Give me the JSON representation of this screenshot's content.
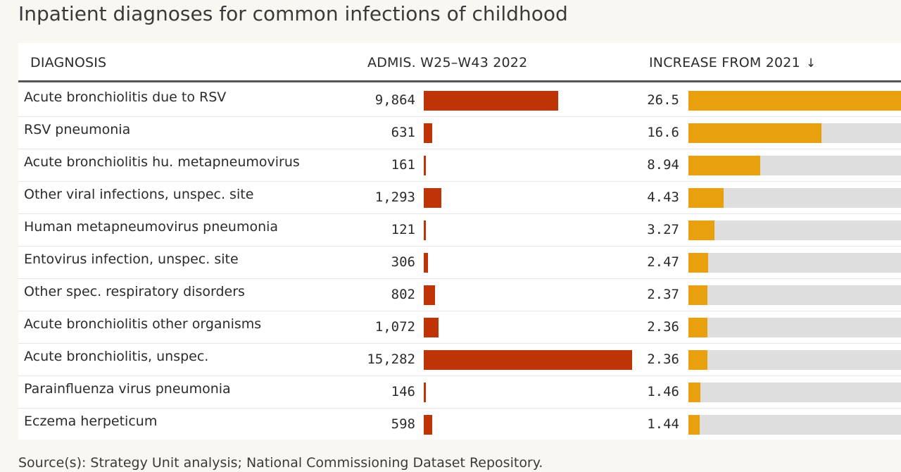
{
  "title": "Inpatient diagnoses for common infections of childhood",
  "source": "Source(s): Strategy Unit analysis; National Commissioning Dataset Repository.",
  "columns": {
    "diagnosis": "DIAGNOSIS",
    "admissions": "ADMIS. W25–W43 2022",
    "increase": "INCREASE FROM 2021",
    "sort_icon": "↓"
  },
  "colors": {
    "admissions_bar": "#bf3407",
    "increase_bar": "#e8a00e",
    "track": "#dedede"
  },
  "chart_data": {
    "type": "table",
    "admissions_max": 15282,
    "increase_max": 26.5,
    "sorted_by": "increase",
    "sort_order": "descending",
    "rows": [
      {
        "diagnosis": "Acute bronchiolitis due to RSV",
        "admissions": 9864,
        "admissions_label": "9,864",
        "increase": 26.5,
        "increase_label": "26.5"
      },
      {
        "diagnosis": "RSV pneumonia",
        "admissions": 631,
        "admissions_label": "631",
        "increase": 16.6,
        "increase_label": "16.6"
      },
      {
        "diagnosis": "Acute bronchiolitis hu. metapneumovirus",
        "admissions": 161,
        "admissions_label": "161",
        "increase": 8.94,
        "increase_label": "8.94"
      },
      {
        "diagnosis": "Other viral infections, unspec. site",
        "admissions": 1293,
        "admissions_label": "1,293",
        "increase": 4.43,
        "increase_label": "4.43"
      },
      {
        "diagnosis": "Human metapneumovirus pneumonia",
        "admissions": 121,
        "admissions_label": "121",
        "increase": 3.27,
        "increase_label": "3.27"
      },
      {
        "diagnosis": "Entovirus infection, unspec. site",
        "admissions": 306,
        "admissions_label": "306",
        "increase": 2.47,
        "increase_label": "2.47"
      },
      {
        "diagnosis": "Other spec. respiratory disorders",
        "admissions": 802,
        "admissions_label": "802",
        "increase": 2.37,
        "increase_label": "2.37"
      },
      {
        "diagnosis": "Acute bronchiolitis other organisms",
        "admissions": 1072,
        "admissions_label": "1,072",
        "increase": 2.36,
        "increase_label": "2.36"
      },
      {
        "diagnosis": "Acute bronchiolitis, unspec.",
        "admissions": 15282,
        "admissions_label": "15,282",
        "increase": 2.36,
        "increase_label": "2.36"
      },
      {
        "diagnosis": "Parainfluenza virus pneumonia",
        "admissions": 146,
        "admissions_label": "146",
        "increase": 1.46,
        "increase_label": "1.46"
      },
      {
        "diagnosis": "Eczema herpeticum",
        "admissions": 598,
        "admissions_label": "598",
        "increase": 1.44,
        "increase_label": "1.44"
      }
    ]
  }
}
